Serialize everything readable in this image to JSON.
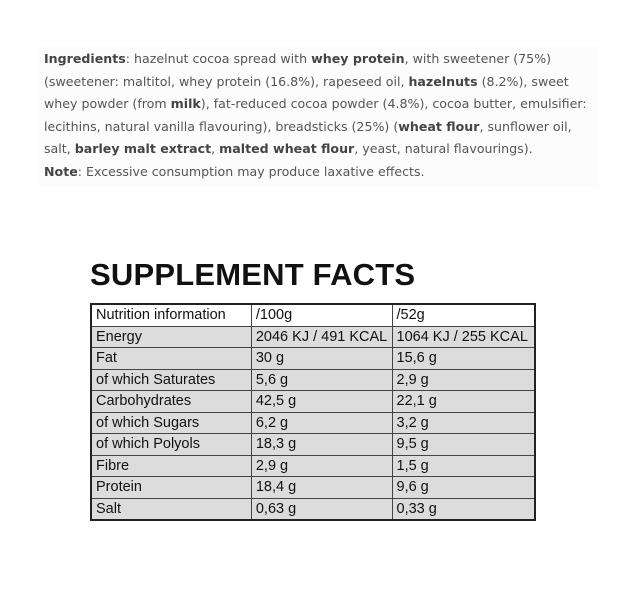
{
  "ingredients": {
    "parts": [
      {
        "text": "Ingredients",
        "bold": true
      },
      {
        "text": ": hazelnut cocoa spread with ",
        "bold": false
      },
      {
        "text": "whey protein",
        "bold": true
      },
      {
        "text": ", with sweetener (75%) (sweetener: maltitol, whey protein (16.8%), rapeseed oil, ",
        "bold": false
      },
      {
        "text": "hazelnuts",
        "bold": true
      },
      {
        "text": " (8.2%), sweet whey powder (from ",
        "bold": false
      },
      {
        "text": "milk",
        "bold": true
      },
      {
        "text": "), fat-reduced cocoa powder (4.8%), cocoa butter, emulsifier: lecithins, natural vanilla flavouring), breadsticks (25%) (",
        "bold": false
      },
      {
        "text": "wheat flour",
        "bold": true
      },
      {
        "text": ", sunflower oil, salt, ",
        "bold": false
      },
      {
        "text": "barley malt extract",
        "bold": true
      },
      {
        "text": ", ",
        "bold": false
      },
      {
        "text": "malted wheat flour",
        "bold": true
      },
      {
        "text": ", yeast, natural flavourings).",
        "bold": false
      }
    ],
    "note": [
      {
        "text": "Note",
        "bold": true
      },
      {
        "text": ": Excessive consumption may produce laxative effects.",
        "bold": false
      }
    ]
  },
  "facts": {
    "title": "SUPPLEMENT FACTS",
    "header": [
      "Nutrition information",
      "/100g",
      "/52g"
    ],
    "rows": [
      [
        "Energy",
        "2046 KJ / 491 KCAL",
        "1064 KJ / 255 KCAL"
      ],
      [
        "Fat",
        "30 g",
        "15,6 g"
      ],
      [
        "of which Saturates",
        "5,6 g",
        "2,9 g"
      ],
      [
        "Carbohydrates",
        "42,5 g",
        "22,1 g"
      ],
      [
        "of which Sugars",
        "6,2 g",
        "3,2 g"
      ],
      [
        "of which Polyols",
        "18,3 g",
        "9,5 g"
      ],
      [
        "Fibre",
        "2,9 g",
        "1,5 g"
      ],
      [
        "Protein",
        "18,4 g",
        "9,6 g"
      ],
      [
        "Salt",
        "0,63 g",
        "0,33 g"
      ]
    ]
  }
}
